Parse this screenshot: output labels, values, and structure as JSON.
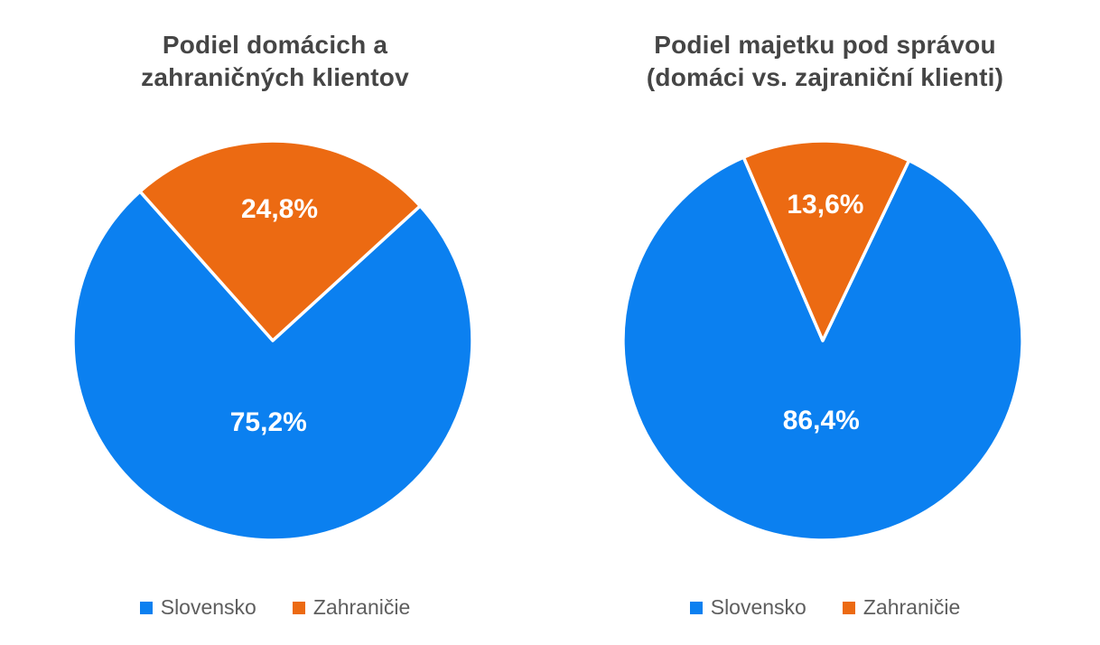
{
  "page": {
    "background": "#ffffff"
  },
  "colors": {
    "slovensko": "#0b80f0",
    "zahranicie": "#ec6a12",
    "title_text": "#454545",
    "legend_text": "#5e5e5e",
    "slice_label_text": "#ffffff"
  },
  "chart_data": [
    {
      "type": "pie",
      "title": "Podiel domácich a\nzahraničných klientov",
      "labels": [
        "Slovensko",
        "Zahraničie"
      ],
      "values": [
        75.2,
        24.8
      ],
      "value_labels": [
        "75,2%",
        "24,8%"
      ],
      "colors": [
        "#0b80f0",
        "#ec6a12"
      ],
      "legend_position": "bottom",
      "start_angle_deg": 47.6,
      "label_radius_frac": [
        0.41,
        0.66
      ]
    },
    {
      "type": "pie",
      "title": "Podiel majetku pod správou\n(domáci vs. zajraniční klienti)",
      "labels": [
        "Slovensko",
        "Zahraničie"
      ],
      "values": [
        86.4,
        13.6
      ],
      "value_labels": [
        "86,4%",
        "13,6%"
      ],
      "colors": [
        "#0b80f0",
        "#ec6a12"
      ],
      "legend_position": "bottom",
      "start_angle_deg": 25.6,
      "label_radius_frac": [
        0.4,
        0.68
      ]
    }
  ]
}
